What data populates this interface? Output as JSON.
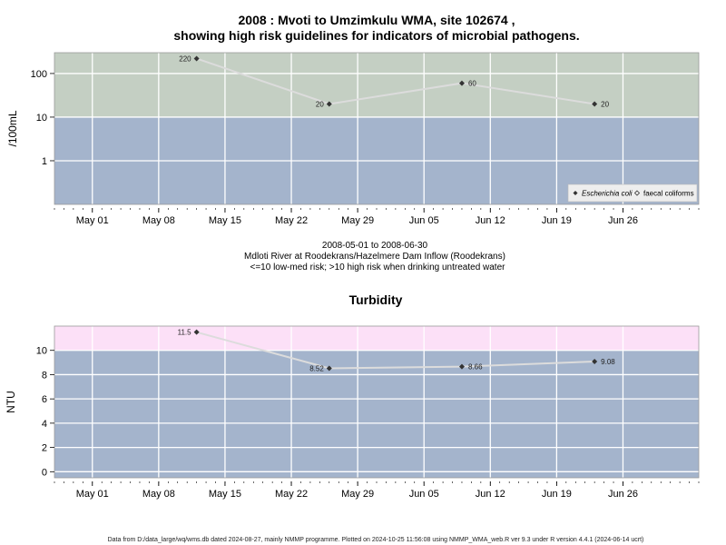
{
  "footer": "Data from D:/data_large/wq/wms.db dated 2024-08-27, mainly NMMP programme. Plotted on 2024-10-25 11:56:08 using NMMP_WMA_web.R ver 9.3 under R version 4.4.1 (2024-06-14 ucrt)",
  "colors": {
    "low_risk_band": "#a4b4cc",
    "high_risk_band_micro": "#c4cfc3",
    "high_risk_band_turbidity": "#fce0f7",
    "grid": "#ffffff",
    "line": "#dcdcdc",
    "marker": "#333333"
  },
  "chart_data": [
    {
      "type": "line",
      "title": "2008 : Mvoti to Umzimkulu WMA, site 102674 ,",
      "subtitle": "showing high risk guidelines for indicators of microbial pathogens.",
      "ylabel": "/100mL",
      "yscale": "log",
      "ylim": [
        0.1,
        300
      ],
      "yticks": [
        1,
        10,
        100
      ],
      "ytick_labels": [
        "1",
        "10",
        "100"
      ],
      "x_dates": [
        "2008-05-12",
        "2008-05-26",
        "2008-06-09",
        "2008-06-23"
      ],
      "xlim": [
        "2008-04-27",
        "2008-07-04"
      ],
      "xticks": [
        "2008-05-01",
        "2008-05-08",
        "2008-05-15",
        "2008-05-22",
        "2008-05-29",
        "2008-06-05",
        "2008-06-12",
        "2008-06-19",
        "2008-06-26"
      ],
      "xtick_labels": [
        "May 01",
        "May 08",
        "May 15",
        "May 22",
        "May 29",
        "Jun 05",
        "Jun 12",
        "Jun 19",
        "Jun 26"
      ],
      "guideline": 10,
      "series": [
        {
          "name": "Escherichia coli",
          "values": [
            220,
            20,
            60,
            20
          ],
          "labels": [
            "220",
            "20",
            "60",
            "20"
          ]
        }
      ],
      "legend": {
        "position": "bottom-right",
        "entries": [
          "Escherichia coli",
          "faecal coliforms"
        ]
      },
      "caption": {
        "date_range": "2008-05-01 to 2008-06-30",
        "site": "Mdloti River at Roodekrans/Hazelmere Dam Inflow (Roodekrans)",
        "risk_note": "<=10 low-med risk; >10 high risk when drinking untreated water"
      },
      "grid": true
    },
    {
      "type": "line",
      "title": "Turbidity",
      "ylabel": "NTU",
      "ylim": [
        -0.5,
        12
      ],
      "yticks": [
        0,
        2,
        4,
        6,
        8,
        10
      ],
      "ytick_labels": [
        "0",
        "2",
        "4",
        "6",
        "8",
        "10"
      ],
      "x_dates": [
        "2008-05-12",
        "2008-05-26",
        "2008-06-09",
        "2008-06-23"
      ],
      "xlim": [
        "2008-04-27",
        "2008-07-04"
      ],
      "xticks": [
        "2008-05-01",
        "2008-05-08",
        "2008-05-15",
        "2008-05-22",
        "2008-05-29",
        "2008-06-05",
        "2008-06-12",
        "2008-06-19",
        "2008-06-26"
      ],
      "xtick_labels": [
        "May 01",
        "May 08",
        "May 15",
        "May 22",
        "May 29",
        "Jun 05",
        "Jun 12",
        "Jun 19",
        "Jun 26"
      ],
      "guideline": 10,
      "series": [
        {
          "values": [
            11.5,
            8.52,
            8.66,
            9.08
          ],
          "labels": [
            "11.5",
            "8.52",
            "8.66",
            "9.08"
          ]
        }
      ],
      "grid": true
    }
  ]
}
